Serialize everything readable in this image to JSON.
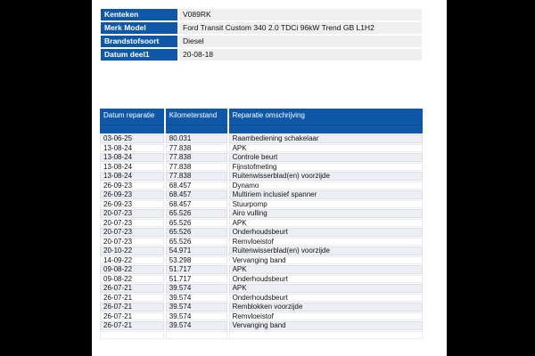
{
  "page": {
    "background_color": "#000000",
    "content_background": "#ffffff",
    "accent_blue": "#0F58A8",
    "row_alt_color": "#EDEFF4",
    "info_value_cell_color": "#EFEFEF"
  },
  "vehicle_info": {
    "rows": [
      {
        "label": "Kenteken",
        "value": "V089RK"
      },
      {
        "label": "Merk Model",
        "value": "Ford Transit Custom 340 2.0 TDCi 96kW Trend GB L1H2"
      },
      {
        "label": "Brandstofsoort",
        "value": "Diesel"
      },
      {
        "label": "Datum deel1",
        "value": "20-08-18"
      }
    ]
  },
  "maintenance_table": {
    "columns": [
      "Datum reparatie",
      "Kilometerstand",
      "Reparatie omschrijving"
    ],
    "rows": [
      {
        "date": "03-06-25",
        "km": "80.031",
        "desc": "Raambediening schakelaar"
      },
      {
        "date": "13-08-24",
        "km": "77.838",
        "desc": "APK"
      },
      {
        "date": "13-08-24",
        "km": "77.838",
        "desc": "Controle beurt"
      },
      {
        "date": "13-08-24",
        "km": "77.838",
        "desc": "Fijnstofmeting"
      },
      {
        "date": "13-08-24",
        "km": "77.838",
        "desc": "Ruitenwisserblad(en) voorzijde"
      },
      {
        "date": "26-09-23",
        "km": "68.457",
        "desc": "Dynamo"
      },
      {
        "date": "26-09-23",
        "km": "68.457",
        "desc": "Multiriem inclusief spanner"
      },
      {
        "date": "26-09-23",
        "km": "68.457",
        "desc": "Stuurpomp"
      },
      {
        "date": "20-07-23",
        "km": "65.526",
        "desc": "Airo vulling"
      },
      {
        "date": "20-07-23",
        "km": "65.526",
        "desc": "APK"
      },
      {
        "date": "20-07-23",
        "km": "65.526",
        "desc": "Onderhoudsbeurt"
      },
      {
        "date": "20-07-23",
        "km": "65.526",
        "desc": "Remvloeistof"
      },
      {
        "date": "20-10-22",
        "km": "54.971",
        "desc": "Ruitenwisserblad(en) voorzijde"
      },
      {
        "date": "14-09-22",
        "km": "53.298",
        "desc": "Vervanging band"
      },
      {
        "date": "09-08-22",
        "km": "51.717",
        "desc": "APK"
      },
      {
        "date": "09-08-22",
        "km": "51.717",
        "desc": "Onderhoudsbeurt"
      },
      {
        "date": "26-07-21",
        "km": "39.574",
        "desc": "APK"
      },
      {
        "date": "26-07-21",
        "km": "39.574",
        "desc": "Onderhoudsbeurt"
      },
      {
        "date": "26-07-21",
        "km": "39.574",
        "desc": "Remblokken voorzijde"
      },
      {
        "date": "26-07-21",
        "km": "39.574",
        "desc": "Remvloeistof"
      },
      {
        "date": "26-07-21",
        "km": "39.574",
        "desc": "Vervanging band"
      }
    ]
  }
}
